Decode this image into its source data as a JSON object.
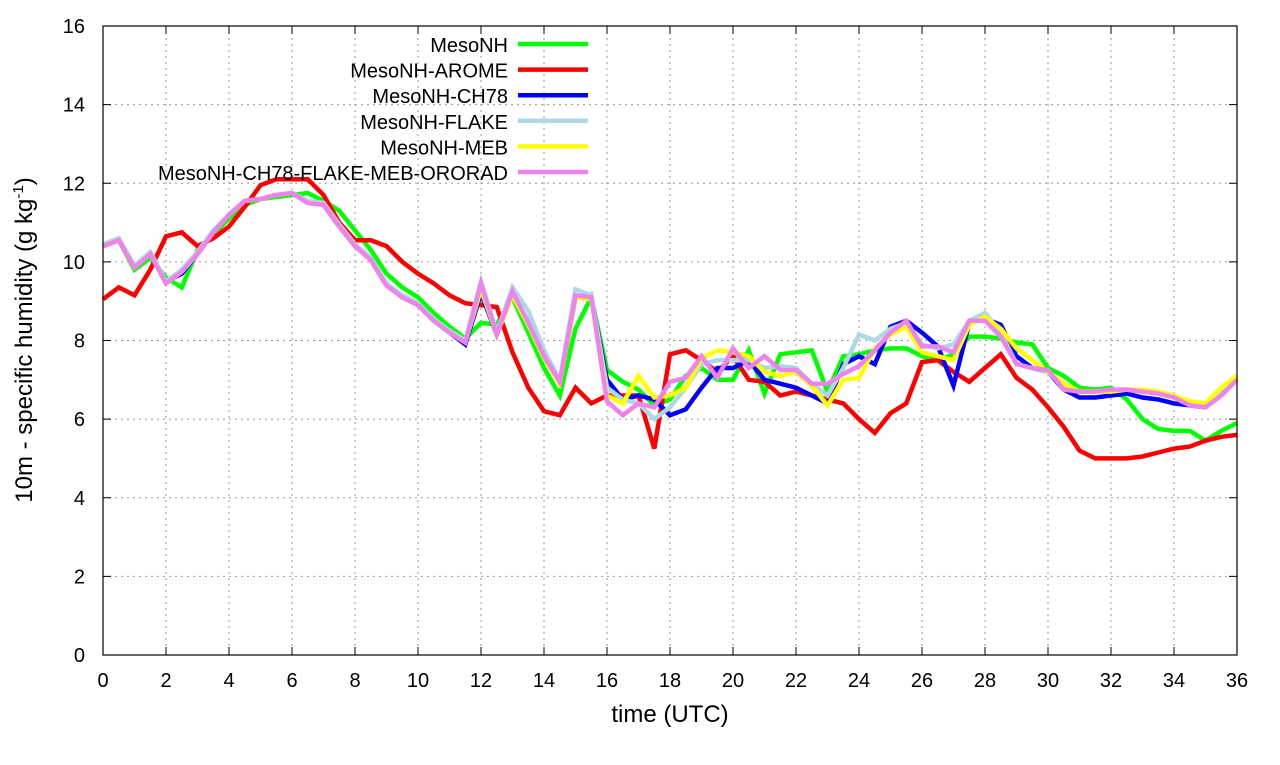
{
  "chart_data": {
    "type": "line",
    "title": "",
    "xlabel": "time (UTC)",
    "ylabel_parts": [
      "10m - specific humidity (g kg",
      "-1",
      ")"
    ],
    "xlim": [
      0,
      36
    ],
    "ylim": [
      0,
      16
    ],
    "xticks": [
      0,
      2,
      4,
      6,
      8,
      10,
      12,
      14,
      16,
      18,
      20,
      22,
      24,
      26,
      28,
      30,
      32,
      34,
      36
    ],
    "yticks": [
      0,
      2,
      4,
      6,
      8,
      10,
      12,
      14,
      16
    ],
    "grid": true,
    "legend_position": "top-left",
    "x": [
      0,
      0.5,
      1,
      1.5,
      2,
      2.5,
      3,
      3.5,
      4,
      4.5,
      5,
      5.5,
      6,
      6.5,
      7,
      7.5,
      8,
      8.5,
      9,
      9.5,
      10,
      10.5,
      11,
      11.5,
      12,
      12.5,
      13,
      13.5,
      14,
      14.5,
      15,
      15.5,
      16,
      16.5,
      17,
      17.5,
      18,
      18.5,
      19,
      19.5,
      20,
      20.5,
      21,
      21.5,
      22,
      22.5,
      23,
      23.5,
      24,
      24.5,
      25,
      25.5,
      26,
      26.5,
      27,
      27.5,
      28,
      28.5,
      29,
      29.5,
      30,
      30.5,
      31,
      31.5,
      32,
      32.5,
      33,
      33.5,
      34,
      34.5,
      35,
      35.5,
      36
    ],
    "series": [
      {
        "name": "MesoNH",
        "color": "#00ff00",
        "values": [
          10.4,
          10.55,
          9.8,
          10.1,
          9.6,
          9.35,
          10.3,
          10.7,
          11.1,
          11.45,
          11.6,
          11.65,
          11.7,
          11.75,
          11.55,
          11.3,
          10.8,
          10.3,
          9.7,
          9.35,
          9.1,
          8.7,
          8.35,
          8.05,
          8.45,
          8.4,
          9.1,
          8.2,
          7.3,
          6.6,
          8.3,
          9.1,
          7.25,
          6.95,
          6.75,
          6.35,
          6.5,
          7.1,
          7.3,
          7.0,
          7.0,
          7.75,
          6.65,
          7.65,
          7.7,
          7.75,
          6.7,
          7.6,
          7.65,
          7.75,
          7.8,
          7.8,
          7.6,
          7.5,
          7.65,
          8.1,
          8.1,
          8.05,
          7.95,
          7.9,
          7.3,
          7.1,
          6.8,
          6.75,
          6.8,
          6.5,
          6.0,
          5.75,
          5.7,
          5.7,
          5.45,
          5.7,
          5.9
        ]
      },
      {
        "name": "MesoNH-AROME",
        "color": "#ff0000",
        "values": [
          9.05,
          9.35,
          9.15,
          9.8,
          10.65,
          10.75,
          10.4,
          10.6,
          10.9,
          11.4,
          11.95,
          12.1,
          12.1,
          12.1,
          11.7,
          11.0,
          10.55,
          10.55,
          10.4,
          10.0,
          9.7,
          9.45,
          9.15,
          8.95,
          8.9,
          8.85,
          7.7,
          6.8,
          6.2,
          6.1,
          6.8,
          6.4,
          6.6,
          6.6,
          6.6,
          5.25,
          7.65,
          7.75,
          7.5,
          7.2,
          7.6,
          7.0,
          6.95,
          6.6,
          6.7,
          6.6,
          6.5,
          6.4,
          6.0,
          5.65,
          6.15,
          6.4,
          7.45,
          7.5,
          7.2,
          6.95,
          7.3,
          7.65,
          7.05,
          6.75,
          6.3,
          5.8,
          5.2,
          5.0,
          5.0,
          5.0,
          5.05,
          5.15,
          5.25,
          5.3,
          5.45,
          5.55,
          5.6
        ]
      },
      {
        "name": "MesoNH-CH78",
        "color": "#0000ff",
        "values": [
          10.4,
          10.55,
          9.85,
          10.2,
          9.5,
          9.7,
          10.2,
          10.75,
          11.2,
          11.55,
          11.6,
          11.7,
          11.75,
          11.5,
          11.45,
          10.9,
          10.4,
          10.05,
          9.4,
          9.1,
          8.9,
          8.5,
          8.2,
          7.9,
          9.2,
          8.15,
          9.2,
          8.45,
          7.6,
          6.9,
          9.1,
          9.1,
          7.0,
          6.5,
          6.6,
          6.5,
          6.1,
          6.25,
          6.8,
          7.3,
          7.3,
          7.5,
          7.0,
          6.9,
          6.8,
          6.6,
          6.4,
          7.4,
          7.6,
          7.4,
          8.35,
          8.5,
          8.2,
          7.85,
          6.85,
          8.45,
          8.55,
          8.4,
          7.6,
          7.3,
          7.2,
          6.75,
          6.55,
          6.55,
          6.6,
          6.65,
          6.55,
          6.5,
          6.4,
          6.35,
          6.3,
          6.7,
          7.0
        ]
      },
      {
        "name": "MesoNH-FLAKE",
        "color": "#add8e6",
        "values": [
          10.45,
          10.6,
          9.9,
          10.25,
          9.5,
          9.8,
          10.25,
          10.8,
          11.2,
          11.55,
          11.6,
          11.7,
          11.75,
          11.55,
          11.5,
          10.95,
          10.45,
          10.1,
          9.45,
          9.15,
          8.95,
          8.55,
          8.25,
          8.0,
          9.5,
          8.2,
          9.35,
          8.75,
          7.75,
          7.0,
          9.3,
          9.15,
          6.8,
          6.5,
          6.4,
          6.0,
          6.3,
          6.8,
          7.4,
          7.5,
          7.5,
          7.5,
          7.3,
          7.35,
          7.3,
          6.9,
          6.6,
          7.3,
          8.15,
          8.0,
          8.3,
          8.45,
          7.9,
          7.8,
          7.9,
          8.5,
          8.7,
          8.2,
          7.4,
          7.3,
          7.2,
          6.8,
          6.7,
          6.7,
          6.75,
          6.75,
          6.7,
          6.65,
          6.55,
          6.4,
          6.35,
          6.7,
          7.0
        ]
      },
      {
        "name": "MesoNH-MEB",
        "color": "#ffff00",
        "values": [
          10.4,
          10.55,
          9.85,
          10.2,
          9.45,
          9.75,
          10.2,
          10.75,
          11.2,
          11.55,
          11.6,
          11.7,
          11.75,
          11.5,
          11.45,
          10.9,
          10.4,
          10.05,
          9.4,
          9.1,
          8.9,
          8.5,
          8.2,
          7.95,
          9.3,
          8.15,
          9.15,
          8.4,
          7.55,
          6.9,
          9.1,
          9.05,
          6.6,
          6.4,
          7.1,
          6.55,
          6.6,
          6.8,
          7.55,
          7.75,
          7.7,
          7.6,
          7.2,
          7.1,
          7.2,
          6.85,
          6.35,
          7.0,
          7.05,
          7.8,
          8.15,
          8.35,
          7.7,
          7.6,
          7.5,
          8.4,
          8.6,
          8.3,
          7.8,
          7.5,
          7.2,
          6.9,
          6.7,
          6.7,
          6.7,
          6.75,
          6.75,
          6.7,
          6.6,
          6.45,
          6.4,
          6.8,
          7.1
        ]
      },
      {
        "name": "MesoNH-CH78-FLAKE-MEB-ORORAD",
        "color": "#ee82ee",
        "values": [
          10.4,
          10.55,
          9.85,
          10.2,
          9.45,
          9.75,
          10.2,
          10.75,
          11.2,
          11.55,
          11.6,
          11.7,
          11.75,
          11.5,
          11.45,
          10.9,
          10.4,
          10.05,
          9.4,
          9.1,
          8.9,
          8.5,
          8.2,
          7.95,
          9.45,
          8.15,
          9.25,
          8.45,
          7.6,
          6.95,
          9.15,
          9.1,
          6.45,
          6.1,
          6.4,
          6.3,
          6.95,
          7.05,
          7.6,
          7.05,
          7.8,
          7.3,
          7.6,
          7.25,
          7.25,
          6.9,
          6.9,
          7.15,
          7.35,
          7.75,
          8.2,
          8.5,
          7.85,
          7.85,
          7.7,
          8.5,
          8.5,
          8.1,
          7.4,
          7.3,
          7.25,
          6.75,
          6.7,
          6.7,
          6.75,
          6.75,
          6.7,
          6.65,
          6.55,
          6.35,
          6.3,
          6.6,
          7.0
        ]
      }
    ]
  }
}
